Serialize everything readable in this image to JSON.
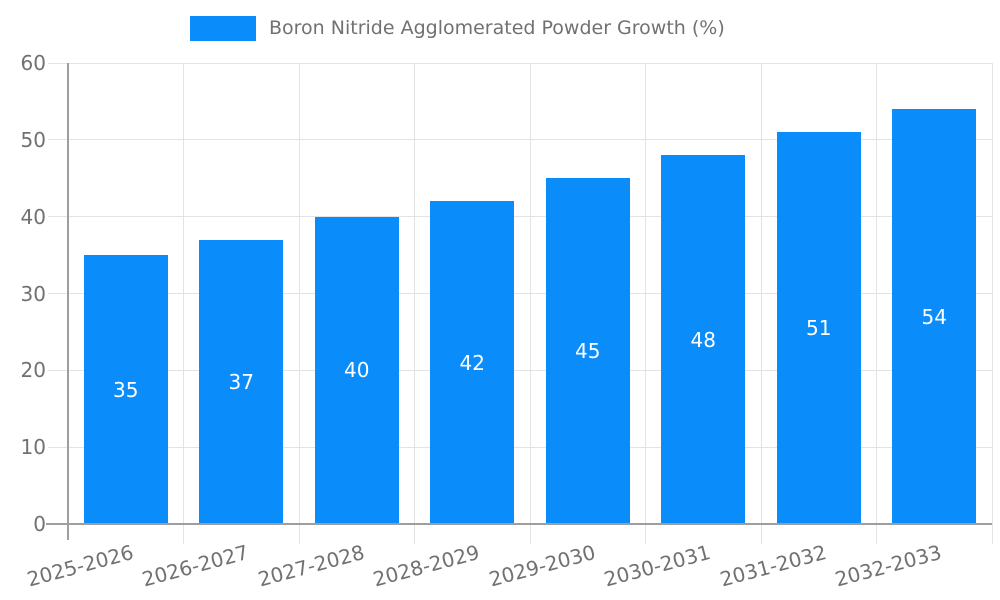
{
  "legend": {
    "series_label": "Boron Nitride Agglomerated Powder Growth (%)"
  },
  "chart_data": {
    "type": "bar",
    "title": "Boron Nitride Agglomerated Powder Growth (%)",
    "categories": [
      "2025-2026",
      "2026-2027",
      "2027-2028",
      "2028-2029",
      "2029-2030",
      "2030-2031",
      "2031-2032",
      "2032-2033"
    ],
    "values": [
      35,
      37,
      40,
      42,
      45,
      48,
      51,
      54
    ],
    "xlabel": "",
    "ylabel": "",
    "ylim": [
      0,
      60
    ],
    "yticks": [
      0,
      10,
      20,
      30,
      40,
      50,
      60
    ],
    "grid": true,
    "legend_position": "top-center",
    "value_labels_position": "center-of-bar",
    "xtick_rotation_deg": -15,
    "bar_color": "#0A8CFA",
    "value_label_color": "#FFFFFF",
    "text_color": "#717171",
    "axis_color": "#9E9E9E",
    "grid_color": "#E3E3E3",
    "background_color": "#FFFFFF"
  }
}
